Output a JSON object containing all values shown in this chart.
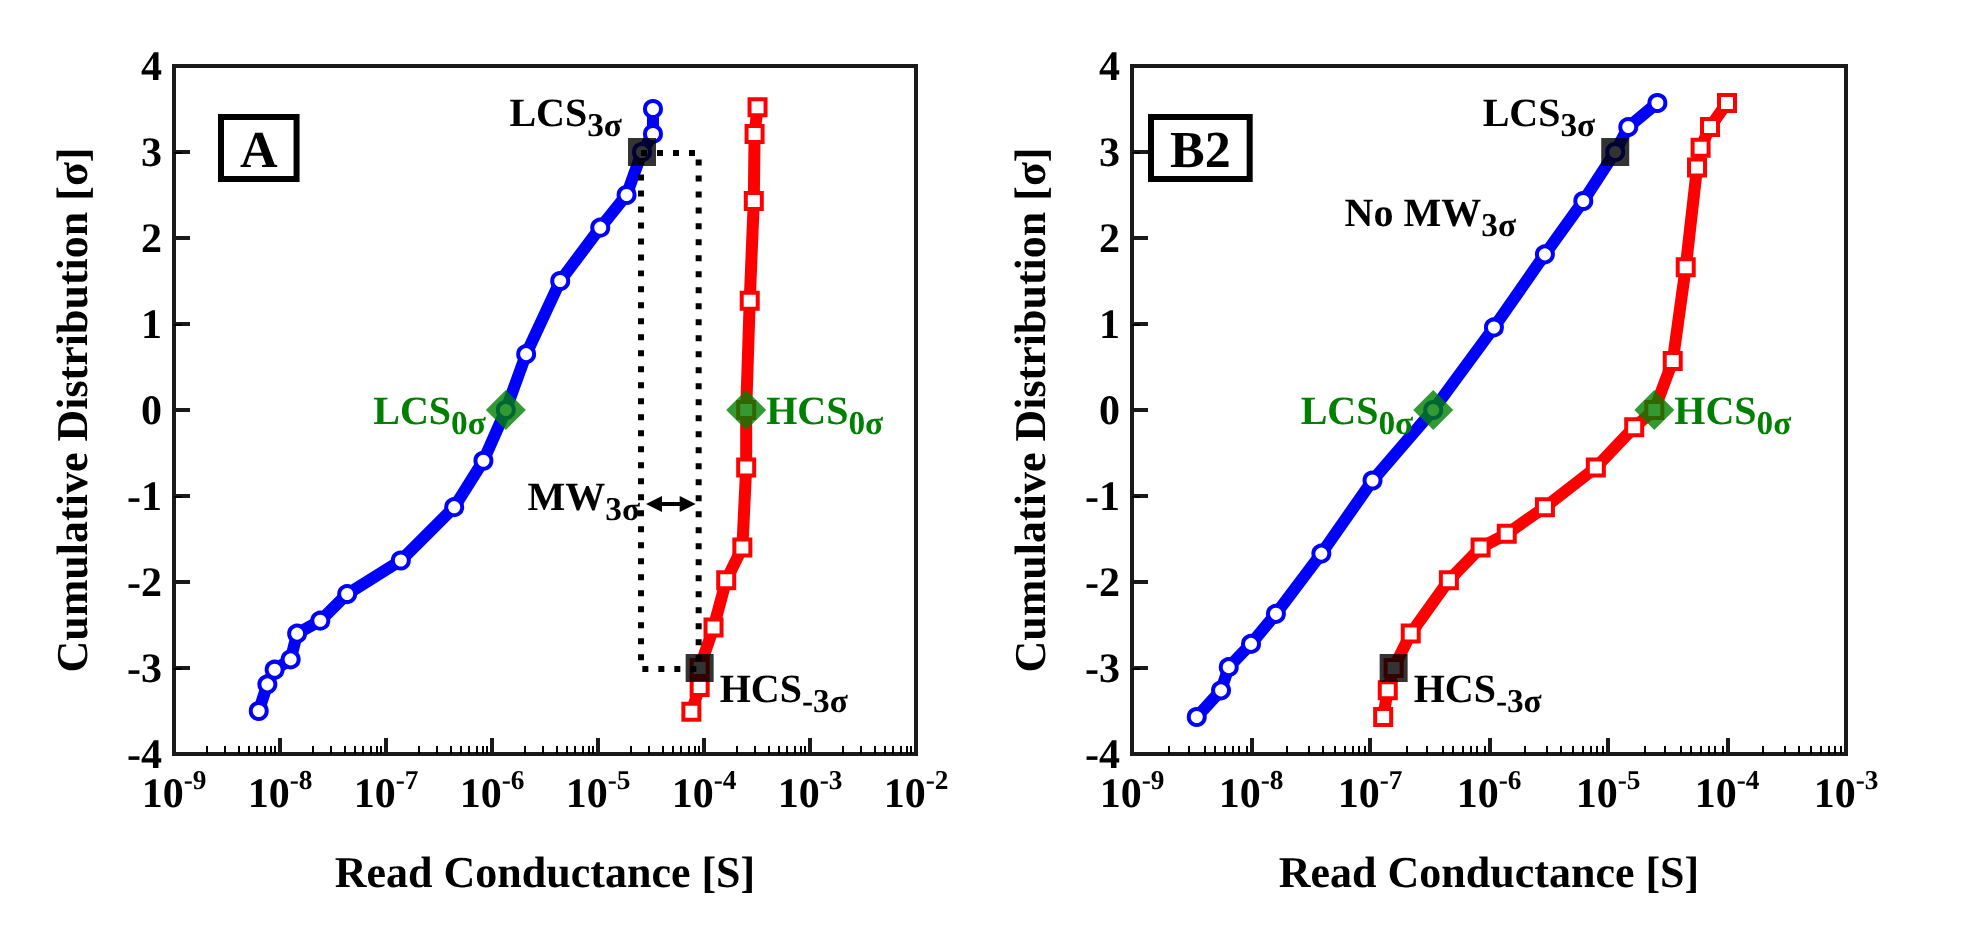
{
  "chart_data": [
    {
      "type": "line",
      "xlabel": "Read Conductance [S]",
      "ylabel": "Cumulative Distribution [σ]",
      "log": "x",
      "grid": false,
      "legend": false,
      "xlim": [
        1e-09,
        0.01
      ],
      "xticks": [
        {
          "value": 1e-09,
          "label": "10$^{-9}$"
        },
        {
          "value": 1e-08,
          "label": "10$^{-8}$"
        },
        {
          "value": 1e-07,
          "label": "10$^{-7}$"
        },
        {
          "value": 1e-06,
          "label": "10$^{-6}$"
        },
        {
          "value": 1e-05,
          "label": "10$^{-5}$"
        },
        {
          "value": 0.0001,
          "label": "10$^{-4}$"
        },
        {
          "value": 0.001,
          "label": "10$^{-3}$"
        },
        {
          "value": 0.01,
          "label": "10$^{-2}$"
        }
      ],
      "ylim": [
        -4,
        4
      ],
      "yticks": [
        -4,
        -3,
        -2,
        -1,
        0,
        1,
        2,
        3,
        4
      ],
      "annotations": [
        "A",
        "MW$_{3σ}$"
      ],
      "series": [
        {
          "color": "#0000ff",
          "marker": "circle",
          "x": [
            6.3e-09,
            7.6e-09,
            8.9e-09,
            1.26e-08,
            1.45e-08,
            2.4e-08,
            4.3e-08,
            1.38e-07,
            4.4e-07,
            8.3e-07,
            1.35e-06,
            2.1e-06,
            4.4e-06,
            1.05e-05,
            1.86e-05,
            2.6e-05,
            3.3e-05,
            3.3e-05
          ],
          "values": [
            -3.5,
            -3.19,
            -3.02,
            -2.9,
            -2.6,
            -2.45,
            -2.14,
            -1.75,
            -1.13,
            -0.59,
            0,
            0.65,
            1.5,
            2.12,
            2.5,
            3.0,
            3.21,
            3.5
          ]
        },
        {
          "color": "#ff0000",
          "marker": "square",
          "x": [
            7.6e-05,
            9.1e-05,
            9.1e-05,
            0.000123,
            0.000162,
            0.00023,
            0.00025,
            0.00025,
            0.00027,
            0.000295,
            0.0003,
            0.00032
          ],
          "values": [
            -3.51,
            -3.22,
            -3.0,
            -2.53,
            -1.98,
            -1.6,
            -0.67,
            0,
            1.27,
            2.43,
            3.21,
            3.52
          ]
        },
        {
          "type": "scatter",
          "name": "LCS$_{3σ}$",
          "color": "#000000",
          "marker": "square",
          "x": [
            2.6e-05
          ],
          "values": [
            3
          ]
        },
        {
          "type": "scatter",
          "name": "HCS$_{-3σ}$",
          "color": "#000000",
          "marker": "square",
          "x": [
            9.1e-05
          ],
          "values": [
            -3
          ]
        },
        {
          "type": "scatter",
          "name": "LCS$_{0σ}$",
          "color": "#008000",
          "marker": "diamond",
          "x": [
            1.35e-06
          ],
          "values": [
            0
          ]
        },
        {
          "type": "scatter",
          "name": "HCS$_{0σ}$",
          "color": "#008000",
          "marker": "diamond",
          "x": [
            0.00025
          ],
          "values": [
            0
          ]
        }
      ]
    },
    {
      "type": "line",
      "xlabel": "Read Conductance [S]",
      "ylabel": "Cumulative Distribution [σ]",
      "log": "x",
      "grid": false,
      "legend": false,
      "xlim": [
        1e-09,
        0.001
      ],
      "xticks": [
        {
          "value": 1e-09,
          "label": "10$^{-9}$"
        },
        {
          "value": 1e-08,
          "label": "10$^{-8}$"
        },
        {
          "value": 1e-07,
          "label": "10$^{-7}$"
        },
        {
          "value": 1e-06,
          "label": "10$^{-6}$"
        },
        {
          "value": 1e-05,
          "label": "10$^{-5}$"
        },
        {
          "value": 0.0001,
          "label": "10$^{-4}$"
        },
        {
          "value": 0.001,
          "label": "10$^{-3}$"
        }
      ],
      "ylim": [
        -4,
        4
      ],
      "yticks": [
        -4,
        -3,
        -2,
        -1,
        0,
        1,
        2,
        3,
        4
      ],
      "annotations": [
        "B2",
        "No MW$_{3σ}$"
      ],
      "series": [
        {
          "color": "#0000ff",
          "marker": "circle",
          "x": [
            3.5e-09,
            5.6e-09,
            6.5e-09,
            1e-08,
            1.62e-08,
            3.9e-08,
            1.05e-07,
            3.4e-07,
            1.1e-06,
            2.95e-06,
            6.2e-06,
            1.15e-05,
            1.48e-05,
            2.6e-05
          ],
          "values": [
            -3.57,
            -3.26,
            -2.99,
            -2.72,
            -2.37,
            -1.67,
            -0.82,
            0,
            0.96,
            1.81,
            2.43,
            3.0,
            3.29,
            3.57
          ]
        },
        {
          "color": "#ff0000",
          "marker": "square",
          "x": [
            1.29e-07,
            1.41e-07,
            1.58e-07,
            2.2e-07,
            4.6e-07,
            8.5e-07,
            1.41e-06,
            2.95e-06,
            7.9e-06,
            1.66e-05,
            2.45e-05,
            3.5e-05,
            4.5e-05,
            5.6e-05,
            6e-05,
            7.2e-05,
            0.0001
          ],
          "values": [
            -3.57,
            -3.26,
            -3.0,
            -2.6,
            -1.98,
            -1.6,
            -1.44,
            -1.13,
            -0.67,
            -0.2,
            0,
            0.57,
            1.66,
            2.82,
            3.05,
            3.29,
            3.57
          ]
        },
        {
          "type": "scatter",
          "name": "LCS$_{3σ}$",
          "color": "#000000",
          "marker": "square",
          "x": [
            1.15e-05
          ],
          "values": [
            3
          ]
        },
        {
          "type": "scatter",
          "name": "HCS$_{-3σ}$",
          "color": "#000000",
          "marker": "square",
          "x": [
            1.58e-07
          ],
          "values": [
            -3
          ]
        },
        {
          "type": "scatter",
          "name": "LCS$_{0σ}$",
          "color": "#008000",
          "marker": "diamond",
          "x": [
            3.4e-07
          ],
          "values": [
            0
          ]
        },
        {
          "type": "scatter",
          "name": "HCS$_{0σ}$",
          "color": "#008000",
          "marker": "diamond",
          "x": [
            2.45e-05
          ],
          "values": [
            0
          ]
        }
      ]
    }
  ]
}
